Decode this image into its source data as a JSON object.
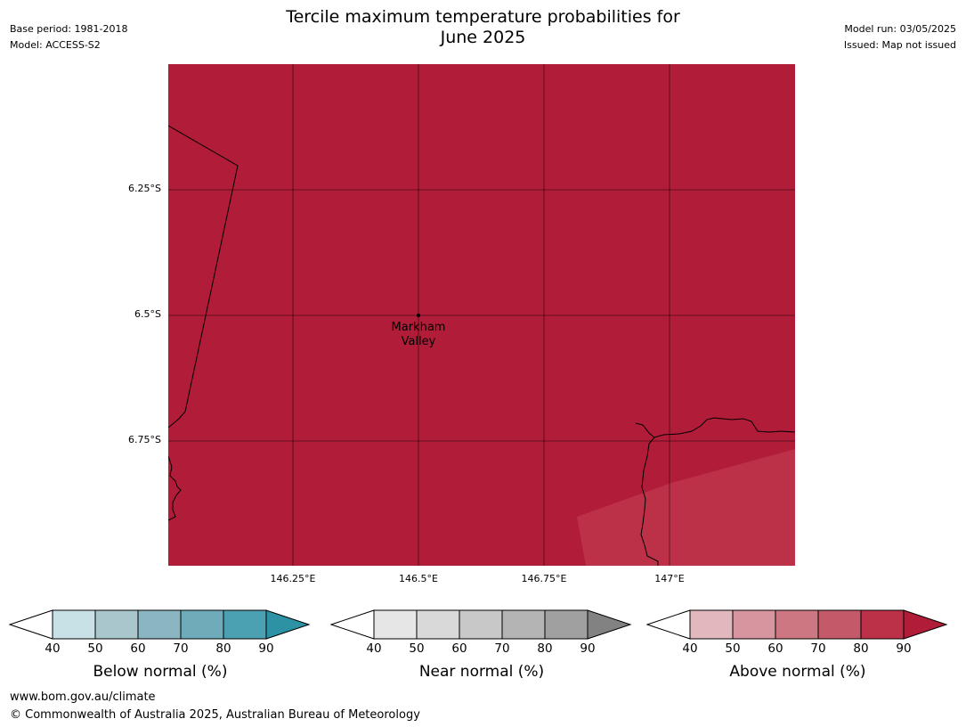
{
  "header": {
    "title_line1": "Tercile maximum temperature probabilities for",
    "title_line2": "June 2025",
    "base_period": "Base period: 1981-2018",
    "model": "Model: ACCESS-S2",
    "model_run": "Model run: 03/05/2025",
    "issued": "Issued: Map not issued"
  },
  "map": {
    "fill_color": "#b11c38",
    "low_prob_patch_color": "#bc3048",
    "place_label_line1": "Markham",
    "place_label_line2": "Valley",
    "lat_ticks": [
      "6.25°S",
      "6.5°S",
      "6.75°S"
    ],
    "lon_ticks": [
      "146.25°E",
      "146.5°E",
      "146.75°E",
      "147°E"
    ]
  },
  "legends": [
    {
      "title": "Below normal (%)",
      "ticks": [
        "40",
        "50",
        "60",
        "70",
        "80",
        "90"
      ],
      "colors": [
        "#c8e1e6",
        "#a8c6cb",
        "#8ab6c2",
        "#6eacba",
        "#4ba1b1",
        "#2d93a4"
      ]
    },
    {
      "title": "Near normal (%)",
      "ticks": [
        "40",
        "50",
        "60",
        "70",
        "80",
        "90"
      ],
      "colors": [
        "#e6e6e6",
        "#d9d9d9",
        "#c8c8c8",
        "#b4b4b4",
        "#a0a0a0",
        "#828282"
      ]
    },
    {
      "title": "Above normal (%)",
      "ticks": [
        "40",
        "50",
        "60",
        "70",
        "80",
        "90"
      ],
      "colors": [
        "#e2b7be",
        "#d6959f",
        "#cc7782",
        "#c4596a",
        "#bc3048",
        "#b11c38"
      ]
    }
  ],
  "footer": {
    "url": "www.bom.gov.au/climate",
    "copyright": "© Commonwealth of Australia 2025, Australian Bureau of Meteorology"
  }
}
